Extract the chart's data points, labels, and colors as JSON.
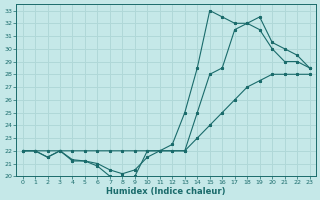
{
  "xlabel": "Humidex (Indice chaleur)",
  "bg_color": "#c5e8e8",
  "line_color": "#1a6b6b",
  "grid_color": "#b0d8d8",
  "xlim": [
    -0.5,
    23.5
  ],
  "ylim": [
    20,
    33.5
  ],
  "xticks": [
    0,
    1,
    2,
    3,
    4,
    5,
    6,
    7,
    8,
    9,
    10,
    11,
    12,
    13,
    14,
    15,
    16,
    17,
    18,
    19,
    20,
    21,
    22,
    23
  ],
  "yticks": [
    20,
    21,
    22,
    23,
    24,
    25,
    26,
    27,
    28,
    29,
    30,
    31,
    32,
    33
  ],
  "line1_x": [
    0,
    1,
    2,
    3,
    4,
    5,
    6,
    7,
    8,
    9,
    10,
    11,
    12,
    13,
    14,
    15,
    16,
    17,
    18,
    19,
    20,
    21,
    22,
    23
  ],
  "line1_y": [
    22,
    22,
    22,
    22,
    22,
    22,
    22,
    22,
    22,
    22,
    22,
    22,
    22,
    22,
    23,
    24,
    25,
    26,
    27,
    27.5,
    28,
    28,
    28,
    28
  ],
  "line2_x": [
    0,
    1,
    2,
    3,
    4,
    5,
    6,
    7,
    8,
    9,
    10,
    11,
    12,
    13,
    14,
    15,
    16,
    17,
    18,
    19,
    20,
    21,
    22,
    23
  ],
  "line2_y": [
    22,
    22,
    21.5,
    22,
    21.3,
    21.2,
    21.0,
    20.5,
    20.2,
    20.5,
    21.5,
    22,
    22.5,
    25,
    28.5,
    33,
    32.5,
    32,
    32,
    31.5,
    30,
    29,
    29,
    28.5
  ],
  "line3_x": [
    0,
    1,
    2,
    3,
    4,
    5,
    6,
    7,
    8,
    9,
    10,
    11,
    12,
    13,
    14,
    15,
    16,
    17,
    18,
    19,
    20,
    21,
    22,
    23
  ],
  "line3_y": [
    22,
    22,
    21.5,
    22,
    21.2,
    21.2,
    20.8,
    20.0,
    19.8,
    20.0,
    22,
    22,
    22,
    22,
    25,
    28,
    28.5,
    31.5,
    32,
    32.5,
    30.5,
    30,
    29.5,
    28.5
  ]
}
